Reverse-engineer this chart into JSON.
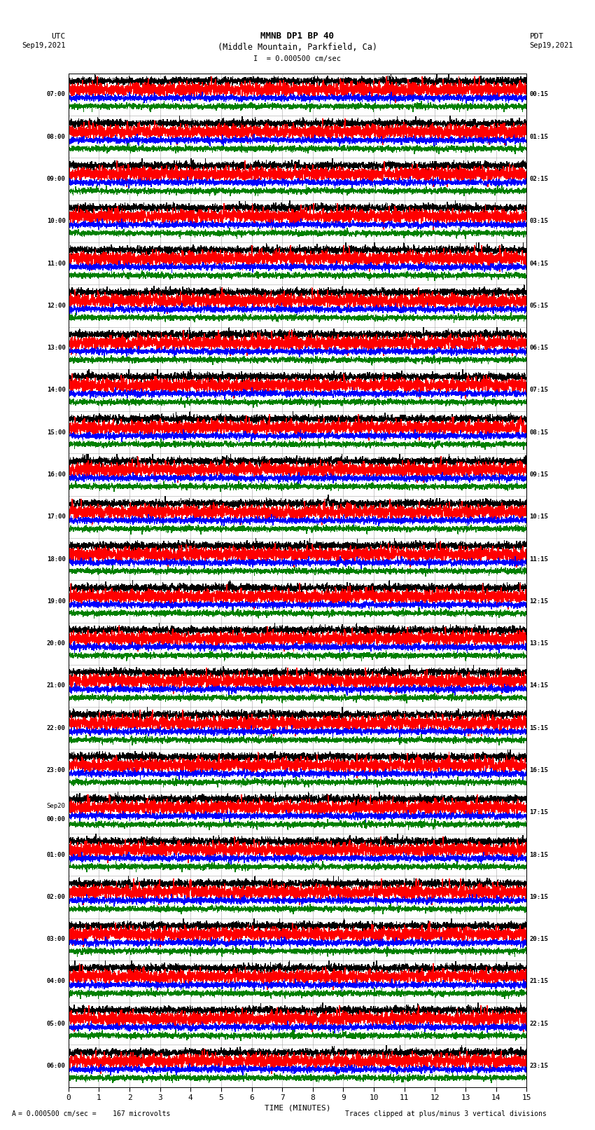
{
  "title_line1": "MMNB DP1 BP 40",
  "title_line2": "(Middle Mountain, Parkfield, Ca)",
  "scale_bar_text": "I  = 0.000500 cm/sec",
  "left_label_top": "UTC",
  "left_label_date": "Sep19,2021",
  "right_label_top": "PDT",
  "right_label_date": "Sep19,2021",
  "bottom_xlabel": "TIME (MINUTES)",
  "bottom_note_left": "= 0.000500 cm/sec =    167 microvolts",
  "bottom_note_right": "Traces clipped at plus/minus 3 vertical divisions",
  "utc_times": [
    "07:00",
    "08:00",
    "09:00",
    "10:00",
    "11:00",
    "12:00",
    "13:00",
    "14:00",
    "15:00",
    "16:00",
    "17:00",
    "18:00",
    "19:00",
    "20:00",
    "21:00",
    "22:00",
    "23:00",
    "Sep20\n00:00",
    "01:00",
    "02:00",
    "03:00",
    "04:00",
    "05:00",
    "06:00"
  ],
  "pdt_times": [
    "00:15",
    "01:15",
    "02:15",
    "03:15",
    "04:15",
    "05:15",
    "06:15",
    "07:15",
    "08:15",
    "09:15",
    "10:15",
    "11:15",
    "12:15",
    "13:15",
    "14:15",
    "15:15",
    "16:15",
    "17:15",
    "18:15",
    "19:15",
    "20:15",
    "21:15",
    "22:15",
    "23:15"
  ],
  "n_rows": 24,
  "n_traces_per_row": 4,
  "trace_colors": [
    "black",
    "red",
    "blue",
    "green"
  ],
  "trace_linewidths": [
    0.35,
    0.6,
    0.35,
    0.35
  ],
  "x_min": 0,
  "x_max": 15,
  "x_ticks": [
    0,
    1,
    2,
    3,
    4,
    5,
    6,
    7,
    8,
    9,
    10,
    11,
    12,
    13,
    14,
    15
  ],
  "background_color": "white",
  "grid_color": "#999999",
  "spike_row_red": 8,
  "spike_col_red": 14.8,
  "spike_row_black": 10,
  "spike_col_black": 8.5,
  "spike_row_red2": 19,
  "spike_col_red2": 4.0,
  "base_amp_black": 0.055,
  "base_amp_red": 0.1,
  "base_amp_blue": 0.045,
  "base_amp_green": 0.04,
  "n_points": 3600
}
